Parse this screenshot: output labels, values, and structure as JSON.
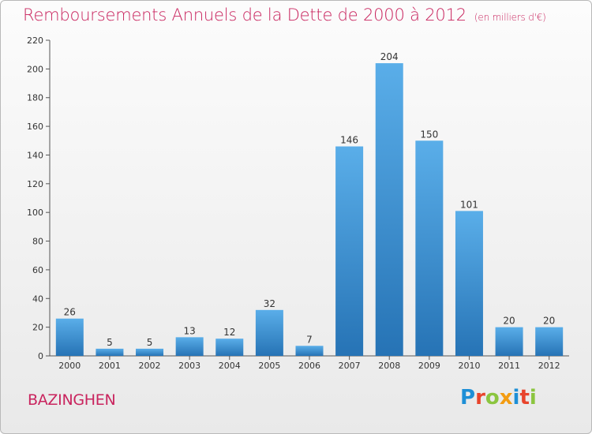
{
  "title": {
    "main": "Remboursements Annuels de la Dette de 2000 à 2012",
    "unit": "(en milliers d'€)"
  },
  "commune": "BAZINGHEN",
  "logo": {
    "text": "Proxiti",
    "colors": [
      "#1e8fd6",
      "#e8442c",
      "#8bc53f",
      "#f39c12",
      "#1e8fd6",
      "#e8442c",
      "#8bc53f"
    ]
  },
  "colors": {
    "bar_light": "#5aaee9",
    "bar_dark": "#2673b5",
    "title": "#c9245e",
    "text": "#333333"
  },
  "chart_data": {
    "type": "bar",
    "categories": [
      "2000",
      "2001",
      "2002",
      "2003",
      "2004",
      "2005",
      "2006",
      "2007",
      "2008",
      "2009",
      "2010",
      "2011",
      "2012"
    ],
    "values": [
      26,
      5,
      5,
      13,
      12,
      32,
      7,
      146,
      204,
      150,
      101,
      20,
      20
    ],
    "data_labels": [
      "26",
      "5",
      "5",
      "13",
      "12",
      "32",
      "7",
      "146",
      "204",
      "150",
      "101",
      "20",
      "20"
    ],
    "ylim": [
      0,
      220
    ],
    "yticks": [
      0,
      20,
      40,
      60,
      80,
      100,
      120,
      140,
      160,
      180,
      200,
      220
    ],
    "title": "Remboursements Annuels de la Dette de 2000 à 2012",
    "xlabel": "",
    "ylabel": "",
    "grid": false
  }
}
